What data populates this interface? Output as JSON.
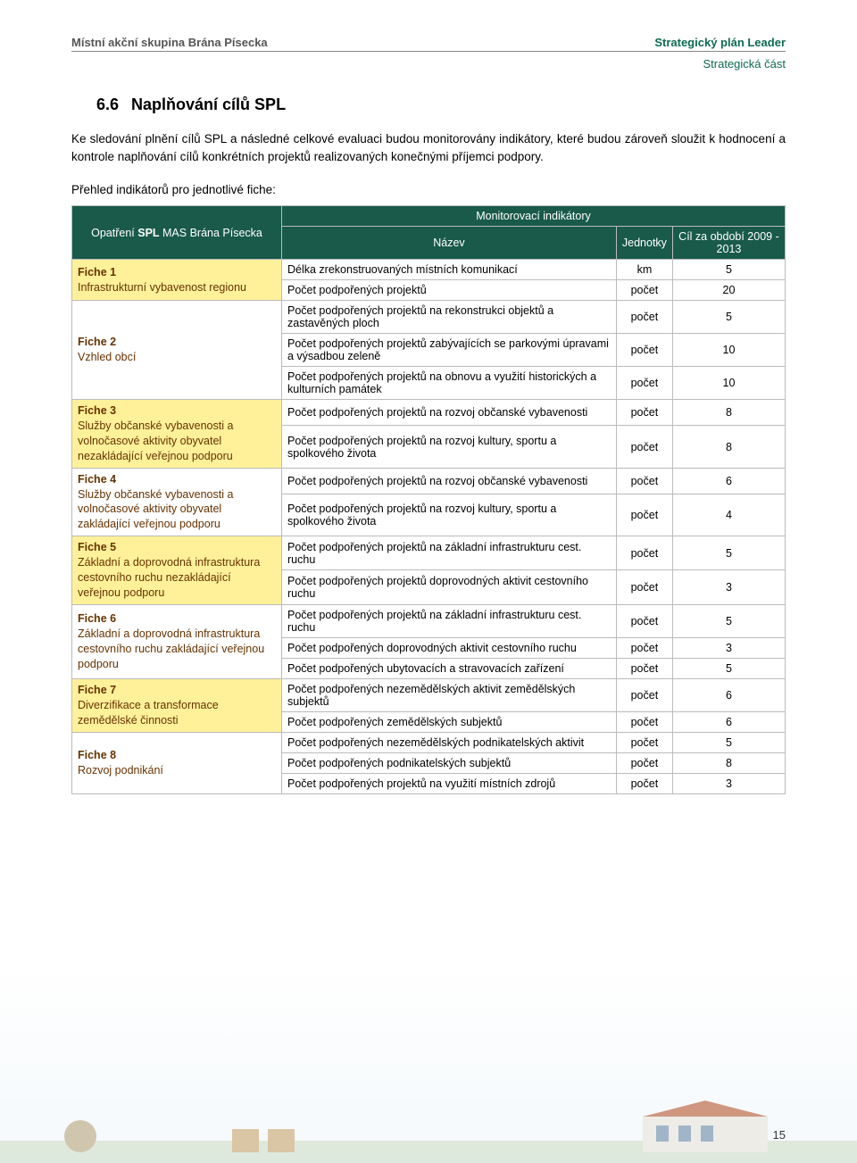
{
  "header": {
    "left": "Místní akční skupina Brána Písecka",
    "right": "Strategický plán Leader",
    "sub": "Strategická část"
  },
  "section": {
    "number": "6.6",
    "title": "Naplňování cílů SPL"
  },
  "para1": "Ke sledování plnění cílů SPL a následné celkové evaluaci budou monitorovány indikátory, které budou zároveň sloužit k hodnocení a kontrole naplňování cílů konkrétních projektů realizovaných konečnými příjemci podpory.",
  "intro_line": "Přehled indikátorů pro jednotlivé fiche:",
  "table": {
    "col_group_label": "Monitorovací indikátory",
    "col_left_top": "Opatření",
    "col_left_strong": "SPL",
    "col_left_rest": " MAS Brána Písecka",
    "col_nazev": "Název",
    "col_jednotky": "Jednotky",
    "col_cil": "Cíl za období 2009 - 2013",
    "fiches": [
      {
        "alt": true,
        "title": "Fiche 1",
        "desc": "Infrastrukturní vybavenost regionu",
        "rows": [
          {
            "nazev": "Délka zrekonstruovaných místních komunikací",
            "unit": "km",
            "target": "5"
          },
          {
            "nazev": "Počet podpořených projektů",
            "unit": "počet",
            "target": "20"
          }
        ]
      },
      {
        "alt": false,
        "title": "Fiche 2",
        "desc": "Vzhled obcí",
        "rows": [
          {
            "nazev": "Počet podpořených projektů na rekonstrukci objektů a zastavěných ploch",
            "unit": "počet",
            "target": "5"
          },
          {
            "nazev": "Počet podpořených projektů zabývajících se parkovými úpravami a výsadbou zeleně",
            "unit": "počet",
            "target": "10"
          },
          {
            "nazev": "Počet podpořených projektů na obnovu a využití historických a kulturních památek",
            "unit": "počet",
            "target": "10"
          }
        ]
      },
      {
        "alt": true,
        "title": "Fiche 3",
        "desc": "Služby občanské vybavenosti a volnočasové aktivity obyvatel nezakládající veřejnou podporu",
        "rows": [
          {
            "nazev": "Počet podpořených projektů na rozvoj občanské vybavenosti",
            "unit": "počet",
            "target": "8"
          },
          {
            "nazev": "Počet podpořených projektů na rozvoj kultury, sportu a spolkového života",
            "unit": "počet",
            "target": "8"
          }
        ]
      },
      {
        "alt": false,
        "title": "Fiche 4",
        "desc": "Služby občanské vybavenosti a volnočasové aktivity obyvatel zakládající veřejnou podporu",
        "rows": [
          {
            "nazev": "Počet podpořených projektů na rozvoj občanské vybavenosti",
            "unit": "počet",
            "target": "6"
          },
          {
            "nazev": "Počet podpořených projektů na rozvoj kultury, sportu a spolkového života",
            "unit": "počet",
            "target": "4"
          }
        ]
      },
      {
        "alt": true,
        "title": "Fiche 5",
        "desc": "Základní a doprovodná infrastruktura cestovního ruchu nezakládající veřejnou podporu",
        "rows": [
          {
            "nazev": "Počet podpořených projektů na základní infrastrukturu cest. ruchu",
            "unit": "počet",
            "target": "5"
          },
          {
            "nazev": "Počet podpořených projektů doprovodných aktivit cestovního ruchu",
            "unit": "počet",
            "target": "3"
          }
        ]
      },
      {
        "alt": false,
        "title": "Fiche 6",
        "desc": "Základní a doprovodná infrastruktura cestovního ruchu zakládající veřejnou podporu",
        "rows": [
          {
            "nazev": "Počet podpořených projektů na základní infrastrukturu cest. ruchu",
            "unit": "počet",
            "target": "5"
          },
          {
            "nazev": "Počet podpořených doprovodných aktivit cestovního ruchu",
            "unit": "počet",
            "target": "3"
          },
          {
            "nazev": "Počet podpořených ubytovacích a stravovacích zařízení",
            "unit": "počet",
            "target": "5"
          }
        ]
      },
      {
        "alt": true,
        "title": "Fiche 7",
        "desc": "Diverzifikace a transformace zemědělské činnosti",
        "rows": [
          {
            "nazev": "Počet podpořených nezemědělských aktivit zemědělských subjektů",
            "unit": "počet",
            "target": "6"
          },
          {
            "nazev": "Počet podpořených zemědělských subjektů",
            "unit": "počet",
            "target": "6"
          }
        ]
      },
      {
        "alt": false,
        "title": "Fiche 8",
        "desc": "Rozvoj podnikání",
        "rows": [
          {
            "nazev": "Počet podpořených nezemědělských podnikatelských aktivit",
            "unit": "počet",
            "target": "5"
          },
          {
            "nazev": "Počet podpořených podnikatelských subjektů",
            "unit": "počet",
            "target": "8"
          },
          {
            "nazev": "Počet podpořených projektů na využití místních zdrojů",
            "unit": "počet",
            "target": "3"
          }
        ]
      }
    ]
  },
  "page_number": "15",
  "colors": {
    "header_bg": "#195a4a",
    "fiche_alt_bg": "#fff19a",
    "fiche_text": "#663300",
    "brand_green": "#0d6b50"
  }
}
